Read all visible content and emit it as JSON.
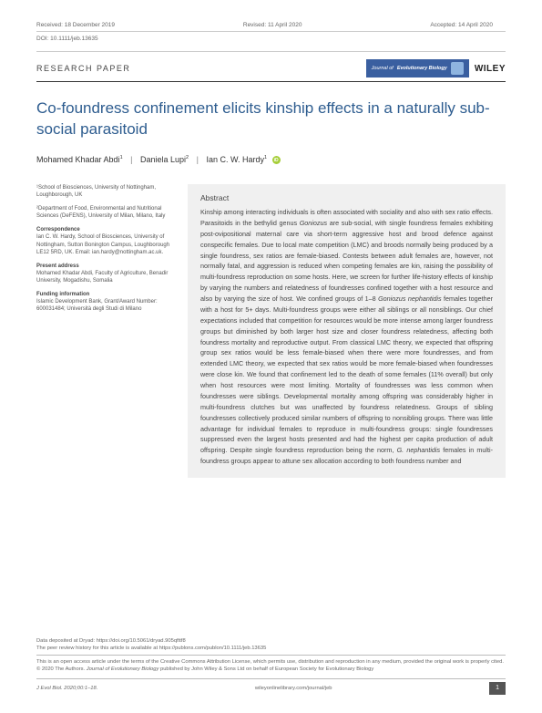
{
  "header": {
    "received": "Received: 18 December 2019",
    "revised": "Revised: 11 April 2020",
    "accepted": "Accepted: 14 April 2020",
    "doi": "DOI: 10.1111/jeb.13635"
  },
  "paper_type": "RESEARCH PAPER",
  "journal_logo_prefix": "Journal of",
  "journal_logo_main": "Evolutionary Biology",
  "wiley": "WILEY",
  "title": "Co-foundress confinement elicits kinship effects in a naturally sub-social parasitoid",
  "authors": {
    "a1": "Mohamed Khadar Abdi",
    "a1_sup": "1",
    "a2": "Daniela Lupi",
    "a2_sup": "2",
    "a3": "Ian C. W. Hardy",
    "a3_sup": "1"
  },
  "meta": {
    "aff1": "¹School of Biosciences, University of Nottingham, Loughborough, UK",
    "aff2": "²Department of Food, Environmental and Nutritional Sciences (DeFENS), University of Milan, Milano, Italy",
    "corr_hdr": "Correspondence",
    "corr_body": "Ian C. W. Hardy, School of Biosciences, University of Nottingham, Sutton Bonington Campus, Loughborough LE12 5RD, UK. Email: ian.hardy@nottingham.ac.uk.",
    "pres_hdr": "Present address",
    "pres_body": "Mohamed Khadar Abdi, Faculty of Agriculture, Benadir University, Mogadishu, Somalia",
    "fund_hdr": "Funding information",
    "fund_body": "Islamic Development Bank, Grant/Award Number: 600031484; Università degli Studi di Milano"
  },
  "abstract": {
    "hdr": "Abstract",
    "body_html": "Kinship among interacting individuals is often associated with sociality and also with sex ratio effects. Parasitoids in the bethylid genus <em>Goniozus</em> are sub-social, with single foundress females exhibiting post-ovipositional maternal care via short-term aggressive host and brood defence against conspecific females. Due to local mate competition (LMC) and broods normally being produced by a single foundress, sex ratios are female-biased. Contests between adult females are, however, not normally fatal, and aggression is reduced when competing females are kin, raising the possibility of multi-foundress reproduction on some hosts. Here, we screen for further life-history effects of kinship by varying the numbers and relatedness of foundresses confined together with a host resource and also by varying the size of host. We confined groups of 1–8 <em>Goniozus nephantidis</em> females together with a host for 5+ days. Multi-foundress groups were either all siblings or all nonsiblings. Our chief expectations included that competition for resources would be more intense among larger foundress groups but diminished by both larger host size and closer foundress relatedness, affecting both foundress mortality and reproductive output. From classical LMC theory, we expected that offspring group sex ratios would be less female-biased when there were more foundresses, and from extended LMC theory, we expected that sex ratios would be more female-biased when foundresses were close kin. We found that confinement led to the death of some females (11% overall) but only when host resources were most limiting. Mortality of foundresses was less common when foundresses were siblings. Developmental mortality among offspring was considerably higher in multi-foundress clutches but was unaffected by foundress relatedness. Groups of sibling foundresses collectively produced similar numbers of offspring to nonsibling groups. There was little advantage for individual females to reproduce in multi-foundress groups: single foundresses suppressed even the largest hosts presented and had the highest per capita production of adult offspring. Despite single foundress reproduction being the norm, <em>G. nephantidis</em> females in multi-foundress groups appear to attune sex allocation according to both foundress number and"
  },
  "footer": {
    "dryad": "Data deposited at Dryad: https://doi.org/10.5061/dryad.905qfttf8",
    "peer": "The peer review history for this article is available at https://publons.com/publon/10.1111/jeb.13635",
    "oa": "This is an open access article under the terms of the Creative Commons Attribution License, which permits use, distribution and reproduction in any medium, provided the original work is properly cited.",
    "copyright": "© 2020 The Authors. <em>Journal of Evolutionary Biology</em> published by John Wiley & Sons Ltd on behalf of European Society for Evolutionary Biology",
    "citation": "J Evol Biol. 2020;00:1–18.",
    "url": "wileyonlinelibrary.com/journal/jeb",
    "page": "1"
  }
}
